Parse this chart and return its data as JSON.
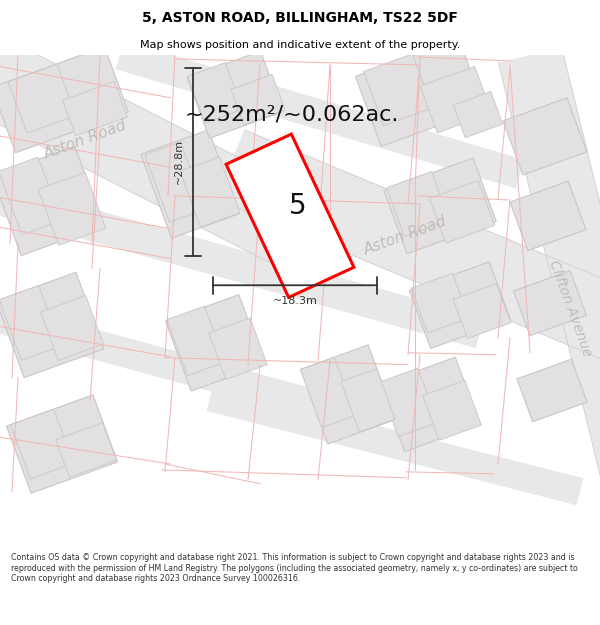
{
  "title_line1": "5, ASTON ROAD, BILLINGHAM, TS22 5DF",
  "title_line2": "Map shows position and indicative extent of the property.",
  "area_label": "~252m²/~0.062ac.",
  "plot_number": "5",
  "dim_width": "~18.3m",
  "dim_height": "~28.8m",
  "footer_text": "Contains OS data © Crown copyright and database right 2021. This information is subject to Crown copyright and database rights 2023 and is reproduced with the permission of HM Land Registry. The polygons (including the associated geometry, namely x, y co-ordinates) are subject to Crown copyright and database rights 2023 Ordnance Survey 100026316.",
  "map_bg": "#f2f1f1",
  "road_bg": "#e9e8e8",
  "building_fill": "#e2e0e0",
  "building_edge": "#c9c6c6",
  "plot_fill": "#ffffff",
  "plot_edge": "#ff0000",
  "pink_line": "#f0b8b8",
  "road_label": "#c0bcbc",
  "dim_color": "#333333",
  "title_color": "#000000",
  "footer_color": "#333333",
  "title_fontsize": 10,
  "subtitle_fontsize": 8,
  "area_fontsize": 16,
  "plot_num_fontsize": 20,
  "road_label_fontsize": 11,
  "dim_fontsize": 8,
  "footer_fontsize": 5.7
}
